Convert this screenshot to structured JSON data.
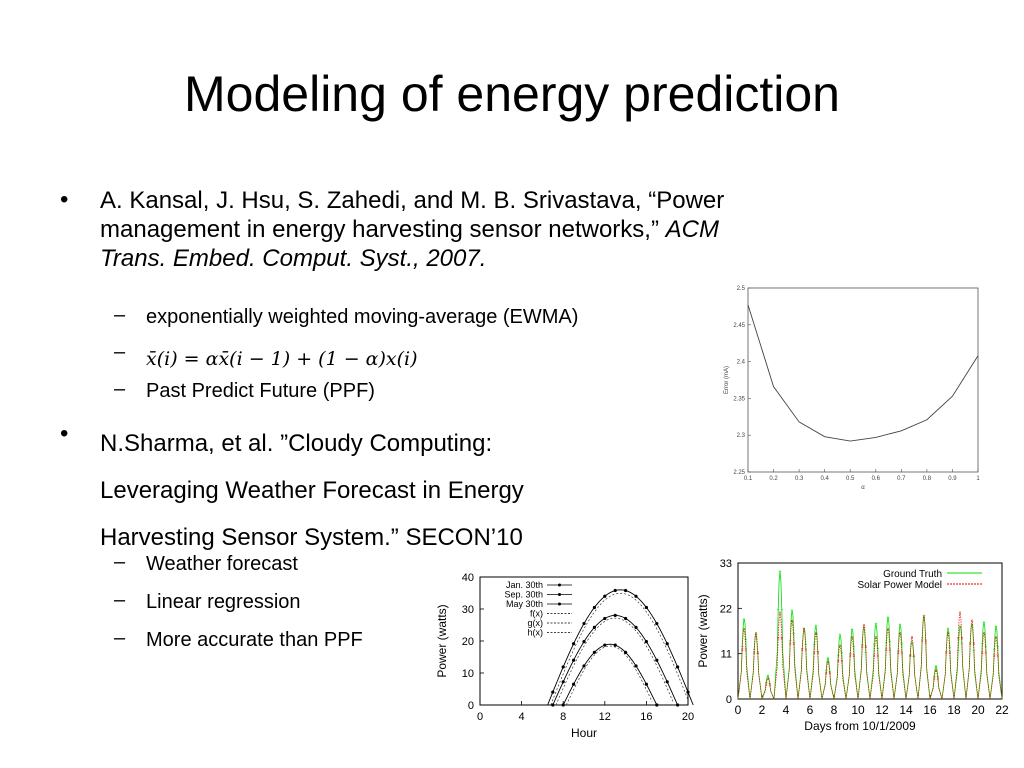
{
  "slide": {
    "title": "Modeling of energy prediction",
    "bullets": [
      {
        "line1": "A. Kansal, J. Hsu, S. Zahedi, and M. B. Srivastava, “Power",
        "line2_plain": "management in energy harvesting sensor networks,” ",
        "line2_italic": "ACM",
        "line3_italic": "Trans. Embed. Comput. Syst., 2007.",
        "subs": [
          "exponentially weighted moving-average (EWMA)",
          "",
          "Past Predict Future (PPF)"
        ],
        "formula": {
          "lhs": "x̄(i) = αx̄(i − 1) + (1 − α)x(i)"
        }
      },
      {
        "lines": [
          "N.Sharma, et al. ”Cloudy Computing:",
          "Leveraging Weather Forecast in Energy",
          "Harvesting Sensor System.” SECON’10"
        ],
        "subs": [
          "Weather forecast",
          "Linear regression",
          "More accurate than PPF"
        ]
      }
    ]
  },
  "colors": {
    "ground_truth": "#00dd00",
    "solar_model": "#ee0000"
  },
  "chart_data": [
    {
      "type": "line",
      "ylabel": "Error (mA)",
      "xlabel": "α",
      "xlim": [
        0.1,
        1
      ],
      "ylim": [
        2.25,
        2.5
      ],
      "xticks": [
        "0.1",
        "0.2",
        "0.3",
        "0.4",
        "0.5",
        "0.6",
        "0.7",
        "0.8",
        "0.9",
        "1"
      ],
      "yticks": [
        "2.25",
        "2.3",
        "2.35",
        "2.4",
        "2.45",
        "2.5"
      ],
      "x": [
        0.1,
        0.2,
        0.3,
        0.4,
        0.5,
        0.6,
        0.7,
        0.8,
        0.9,
        1.0
      ],
      "y": [
        2.477,
        2.366,
        2.318,
        2.298,
        2.292,
        2.297,
        2.306,
        2.321,
        2.353,
        2.408
      ]
    },
    {
      "type": "line",
      "ylabel": "Power (watts)",
      "xlabel": "Hour",
      "xlim": [
        0,
        20
      ],
      "ylim": [
        0,
        40
      ],
      "xticks": [
        "0",
        "4",
        "8",
        "12",
        "16",
        "20"
      ],
      "yticks": [
        "0",
        "10",
        "20",
        "30",
        "40"
      ],
      "legend": [
        "Jan. 30th",
        "Sep. 30th",
        "May 30th",
        "f(x)",
        "g(x)",
        "h(x)"
      ],
      "series": [
        {
          "name": "Jan. 30th",
          "peak": 19,
          "start": 8,
          "end": 17
        },
        {
          "name": "Sep. 30th",
          "peak": 28,
          "start": 7,
          "end": 19
        },
        {
          "name": "May 30th",
          "peak": 36,
          "start": 6.5,
          "end": 20.5
        }
      ]
    },
    {
      "type": "line",
      "xlabel": "Days from 10/1/2009",
      "ylabel": "Power (watts)",
      "xlim": [
        0,
        22
      ],
      "ylim": [
        0,
        33
      ],
      "xticks": [
        "0",
        "2",
        "4",
        "6",
        "8",
        "10",
        "12",
        "14",
        "16",
        "18",
        "20",
        "22"
      ],
      "yticks": [
        "0",
        "11",
        "22",
        "33"
      ],
      "legend": [
        "Ground Truth",
        "Solar Power Model"
      ],
      "series": [
        {
          "name": "Ground Truth",
          "daily_peaks": [
            22,
            20,
            6,
            31,
            23,
            22,
            20,
            10,
            16,
            20,
            21,
            19,
            20,
            20,
            18,
            22,
            8,
            18,
            22,
            21,
            19,
            18
          ]
        },
        {
          "name": "Solar Power Model",
          "daily_peaks": [
            17,
            16,
            5,
            21,
            19,
            17,
            16,
            9,
            13,
            15,
            18,
            15,
            17,
            16,
            15,
            20,
            7,
            16,
            21,
            19,
            16,
            15
          ]
        }
      ]
    }
  ]
}
